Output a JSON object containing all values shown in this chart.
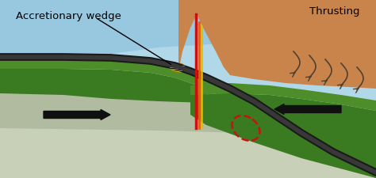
{
  "label_accretionary": "Accretionary wedge",
  "label_thrusting": "Thrusting",
  "bg_color": "#b0d8e8",
  "ocean_color": "#98c8e0",
  "upper_plate_color": "#c8844a",
  "upper_plate_dark": "#a06030",
  "green_dark": "#3a7a20",
  "green_mid": "#4e8e2a",
  "green_light": "#62a035",
  "gray_mantle": "#b0bba0",
  "gray_mantle2": "#c8d0b8",
  "slab_dark": "#1a1a1a",
  "sediment_color": "#c8a020",
  "wedge_color": "#c0980c",
  "arrow_color": "#101010",
  "red_line": "#cc1010",
  "orange_line": "#e06010",
  "yellow_line": "#d8c000",
  "red_dash": "#cc1010",
  "thrust_color": "#504030",
  "figsize": [
    4.74,
    2.25
  ],
  "dpi": 100
}
